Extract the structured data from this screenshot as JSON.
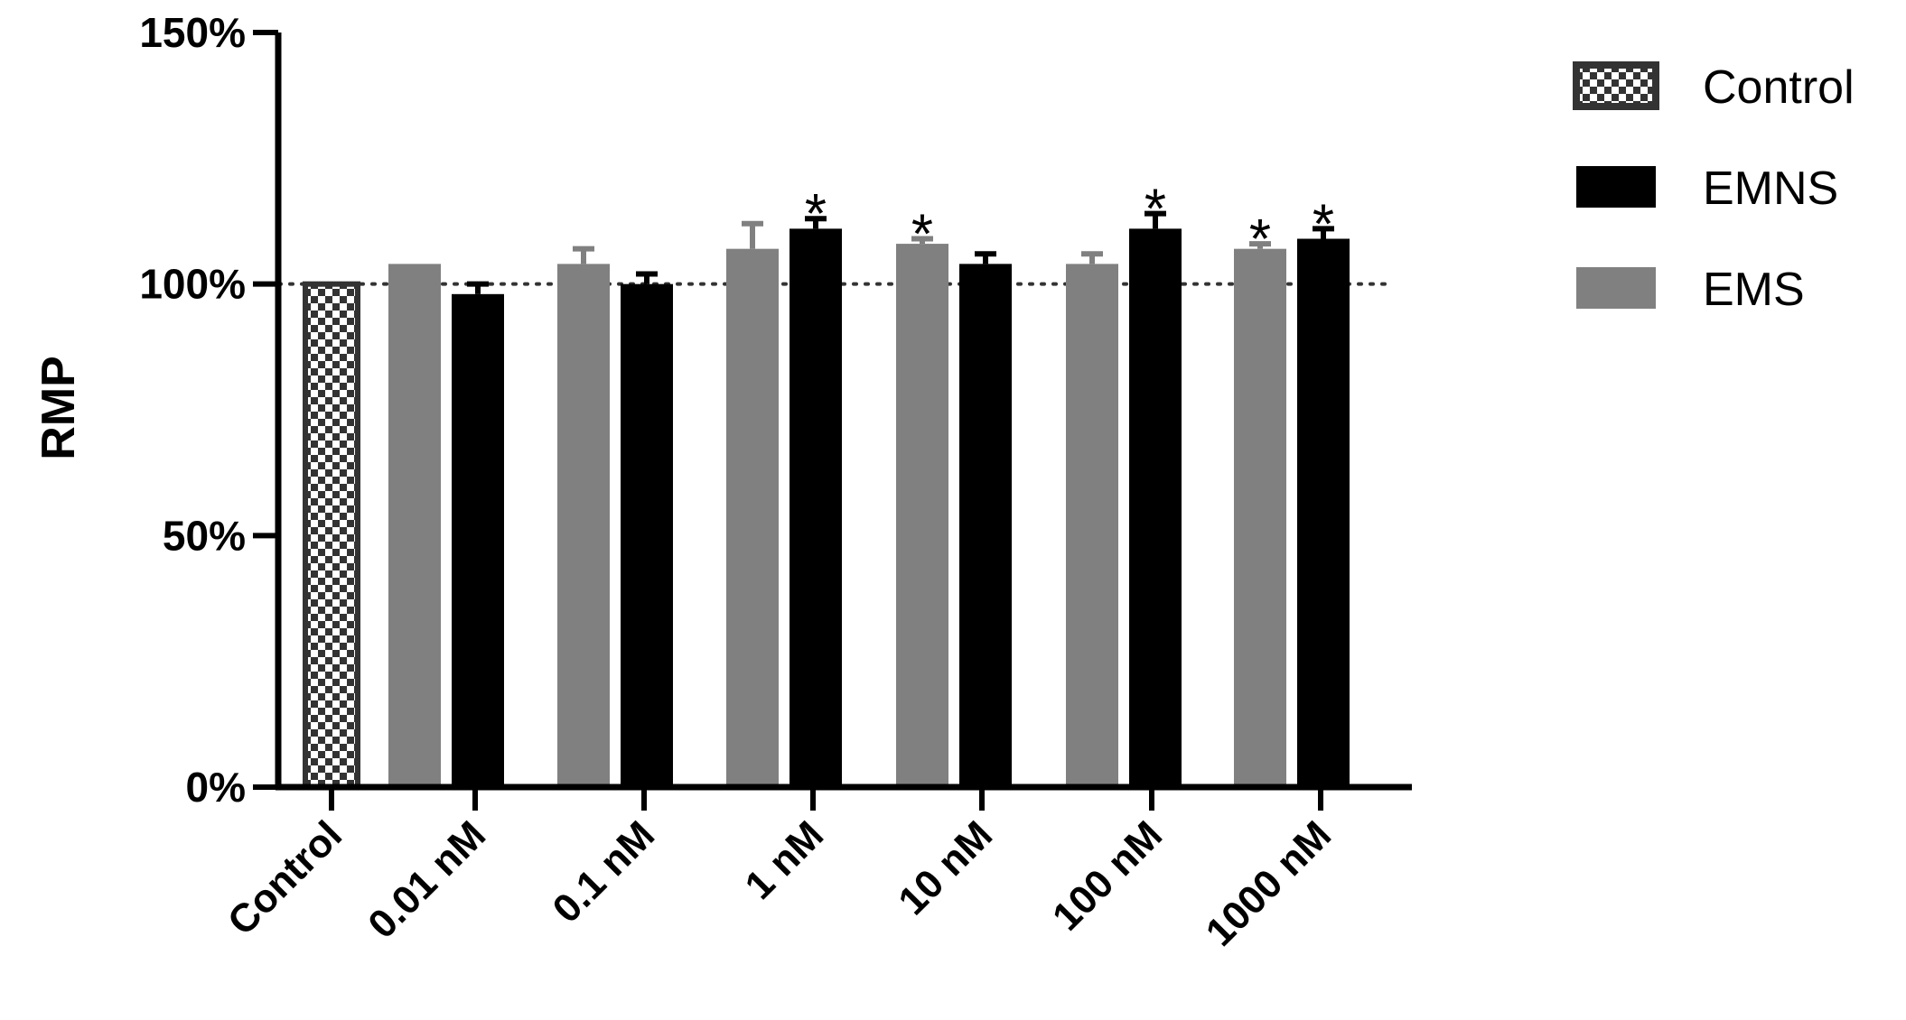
{
  "chart_data": {
    "type": "bar",
    "ylabel": "RMP",
    "xlabel": "",
    "ylim": [
      0,
      1.5
    ],
    "yticks": [
      0,
      0.5,
      1.0,
      1.5
    ],
    "ytick_labels": [
      "0%",
      "50%",
      "100%",
      "150%"
    ],
    "reference_line": 1.0,
    "reference_line_style": "dotted",
    "grid": false,
    "legend_position": "top-right",
    "categories": [
      "Control",
      "0.01 nM",
      "0.1 nM",
      "1 nM",
      "10 nM",
      "100 nM",
      "1000 nM"
    ],
    "series": [
      {
        "name": "Control",
        "pattern": "checkerboard",
        "color": "#333333",
        "values": [
          1.0,
          null,
          null,
          null,
          null,
          null,
          null
        ],
        "errors": [
          0,
          null,
          null,
          null,
          null,
          null,
          null
        ],
        "significant": [
          false,
          false,
          false,
          false,
          false,
          false,
          false
        ]
      },
      {
        "name": "EMS",
        "color": "#808080",
        "values": [
          null,
          1.04,
          1.04,
          1.07,
          1.08,
          1.04,
          1.07
        ],
        "errors": [
          null,
          0.0,
          0.03,
          0.05,
          0.01,
          0.02,
          0.01
        ],
        "significant": [
          false,
          false,
          false,
          false,
          true,
          false,
          true
        ]
      },
      {
        "name": "EMNS",
        "color": "#000000",
        "values": [
          null,
          0.98,
          1.0,
          1.11,
          1.04,
          1.11,
          1.09
        ],
        "errors": [
          null,
          0.02,
          0.02,
          0.02,
          0.02,
          0.03,
          0.02
        ],
        "significant": [
          false,
          false,
          false,
          true,
          false,
          true,
          true
        ]
      }
    ],
    "significance_marker": "*",
    "legend": [
      "Control",
      "EMNS",
      "EMS"
    ]
  }
}
